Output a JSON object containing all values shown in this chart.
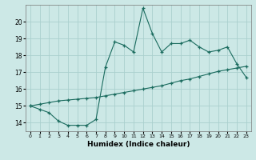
{
  "xlabel": "Humidex (Indice chaleur)",
  "xlim": [
    -0.5,
    23.5
  ],
  "ylim": [
    13.5,
    21.0
  ],
  "yticks": [
    14,
    15,
    16,
    17,
    18,
    19,
    20
  ],
  "xticks": [
    0,
    1,
    2,
    3,
    4,
    5,
    6,
    7,
    8,
    9,
    10,
    11,
    12,
    13,
    14,
    15,
    16,
    17,
    18,
    19,
    20,
    21,
    22,
    23
  ],
  "background_color": "#cce8e6",
  "grid_color": "#aacfcd",
  "line_color": "#1a6b5e",
  "line_straight_x": [
    0,
    1,
    2,
    3,
    4,
    5,
    6,
    7,
    8,
    9,
    10,
    11,
    12,
    13,
    14,
    15,
    16,
    17,
    18,
    19,
    20,
    21,
    22,
    23
  ],
  "line_straight_y": [
    15.0,
    15.1,
    15.2,
    15.3,
    15.35,
    15.4,
    15.45,
    15.5,
    15.6,
    15.7,
    15.8,
    15.9,
    16.0,
    16.1,
    16.2,
    16.35,
    16.5,
    16.6,
    16.75,
    16.9,
    17.05,
    17.15,
    17.25,
    17.35
  ],
  "line_jagged_x": [
    0,
    1,
    2,
    3,
    4,
    5,
    6,
    7,
    8,
    9,
    10,
    11,
    12,
    13,
    14,
    15,
    16,
    17,
    18,
    19,
    20,
    21,
    22,
    23
  ],
  "line_jagged_y": [
    15.0,
    14.8,
    14.6,
    14.1,
    13.85,
    13.85,
    13.85,
    14.2,
    17.3,
    18.8,
    18.6,
    18.2,
    20.8,
    19.3,
    18.2,
    18.7,
    18.7,
    18.9,
    18.5,
    18.2,
    18.3,
    18.5,
    17.5,
    16.7
  ]
}
